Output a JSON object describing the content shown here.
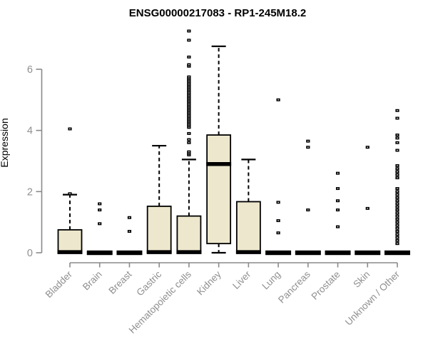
{
  "chart_data": {
    "type": "boxplot",
    "title": "ENSG00000217083 - RP1-245M18.2",
    "ylabel": "Expression",
    "xlabel": "",
    "ylim": [
      0,
      7.3
    ],
    "yticks": [
      0,
      2,
      4,
      6
    ],
    "grid": false,
    "legend": "none",
    "categories": [
      "Bladder",
      "Brain",
      "Breast",
      "Gastric",
      "Hematopoietic cells",
      "Kidney",
      "Liver",
      "Lung",
      "Pancreas",
      "Prostate",
      "Skin",
      "Unknown / Other"
    ],
    "series": [
      {
        "name": "Bladder",
        "q1": 0,
        "median": 0.02,
        "q3": 0.75,
        "whisker_low": 0,
        "whisker_high": 1.9,
        "outliers": [
          4.05,
          1.93
        ]
      },
      {
        "name": "Brain",
        "q1": 0,
        "median": 0,
        "q3": 0,
        "whisker_low": 0,
        "whisker_high": 0,
        "outliers": [
          1.6,
          1.4,
          0.95
        ]
      },
      {
        "name": "Breast",
        "q1": 0,
        "median": 0,
        "q3": 0,
        "whisker_low": 0,
        "whisker_high": 0,
        "outliers": [
          1.15,
          0.7
        ]
      },
      {
        "name": "Gastric",
        "q1": 0,
        "median": 0.02,
        "q3": 1.52,
        "whisker_low": 0,
        "whisker_high": 3.5,
        "outliers": []
      },
      {
        "name": "Hematopoietic cells",
        "q1": 0,
        "median": 0.02,
        "q3": 1.2,
        "whisker_low": 0,
        "whisker_high": 3.05,
        "outliers": [
          3.2,
          3.25,
          3.3,
          3.6,
          3.7,
          3.9,
          4.1,
          4.15,
          4.2,
          4.25,
          4.3,
          4.35,
          4.4,
          4.45,
          4.5,
          4.55,
          4.6,
          4.65,
          4.7,
          4.75,
          4.8,
          4.85,
          4.9,
          4.95,
          5.0,
          5.05,
          5.1,
          5.15,
          5.2,
          5.25,
          5.3,
          5.35,
          5.4,
          5.45,
          5.5,
          5.55,
          5.6,
          5.65,
          5.7,
          5.75,
          6.1,
          6.15,
          6.4,
          6.95,
          7.25
        ]
      },
      {
        "name": "Kidney",
        "q1": 0.3,
        "median": 2.9,
        "q3": 3.85,
        "whisker_low": 0,
        "whisker_high": 6.75,
        "outliers": []
      },
      {
        "name": "Liver",
        "q1": 0,
        "median": 0.02,
        "q3": 1.67,
        "whisker_low": 0,
        "whisker_high": 3.05,
        "outliers": []
      },
      {
        "name": "Lung",
        "q1": 0,
        "median": 0,
        "q3": 0,
        "whisker_low": 0,
        "whisker_high": 0,
        "outliers": [
          5.0,
          1.65,
          1.05,
          0.65
        ]
      },
      {
        "name": "Pancreas",
        "q1": 0,
        "median": 0,
        "q3": 0,
        "whisker_low": 0,
        "whisker_high": 0,
        "outliers": [
          3.65,
          3.45,
          1.4
        ]
      },
      {
        "name": "Prostate",
        "q1": 0,
        "median": 0,
        "q3": 0,
        "whisker_low": 0,
        "whisker_high": 0,
        "outliers": [
          2.6,
          2.1,
          1.7,
          1.4,
          0.85
        ]
      },
      {
        "name": "Skin",
        "q1": 0,
        "median": 0,
        "q3": 0,
        "whisker_low": 0,
        "whisker_high": 0,
        "outliers": [
          3.45,
          1.45
        ]
      },
      {
        "name": "Unknown / Other",
        "q1": 0,
        "median": 0,
        "q3": 0,
        "whisker_low": 0,
        "whisker_high": 0,
        "outliers": [
          4.65,
          4.4,
          3.85,
          3.75,
          3.6,
          3.35,
          2.85,
          2.75,
          2.65,
          2.55,
          2.45,
          2.1,
          2.0,
          1.9,
          1.8,
          1.7,
          1.6,
          1.5,
          1.4,
          1.3,
          1.2,
          1.1,
          1.0,
          0.9,
          0.8,
          0.7,
          0.6,
          0.5,
          0.4,
          0.3
        ]
      }
    ],
    "colors": {
      "box_fill": "#EDE8CD",
      "box_stroke": "#000000",
      "median": "#000000",
      "outlier": "#000000",
      "axis": "#8A8A8A",
      "axis_text": "#8F8F8F",
      "title": "#000000",
      "background": "#FFFFFF"
    }
  }
}
